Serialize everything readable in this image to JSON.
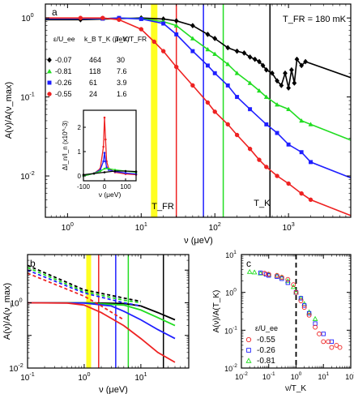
{
  "colors": {
    "black": "#000000",
    "green": "#22dd22",
    "blue": "#1f1fff",
    "red": "#ee2222",
    "yellow": "#ffff22",
    "light_green": "#22dd22"
  },
  "chart_data": [
    {
      "id": "a",
      "type": "scatter",
      "panel_label": "a",
      "annotation": "T_FR = 180 mK",
      "ylabel": "A(ν)/A(ν_max)",
      "xlabel": "ν (μeV)",
      "xscale": "log",
      "yscale": "log",
      "xlim": [
        0.5,
        7000
      ],
      "ylim": [
        0.003,
        1.5
      ],
      "x_ticks": [
        "10^0",
        "10^1",
        "10^2",
        "10^3"
      ],
      "y_ticks": [
        "10^-2",
        "10^-1",
        "10^0"
      ],
      "vertical_lines": [
        {
          "x": 15,
          "color": "yellow",
          "label": "T_FR"
        },
        {
          "x": 30,
          "color": "red"
        },
        {
          "x": 70,
          "color": "blue"
        },
        {
          "x": 130,
          "color": "green"
        },
        {
          "x": 560,
          "color": "black",
          "label": "T_K"
        }
      ],
      "legend_headers": [
        "ε/U_ee",
        "k_B T_K (μeV)",
        "T_K/T_FR"
      ],
      "series": [
        {
          "name": "-0.07",
          "eps": "-0.07",
          "kbtk": "464",
          "ratio": "30",
          "color": "black",
          "marker": "diamond",
          "x": [
            1.5,
            5,
            10,
            20,
            30,
            50,
            80,
            100,
            150,
            200,
            250,
            300,
            350,
            400,
            450,
            500,
            600,
            700,
            800,
            900,
            1000,
            1100,
            1200,
            1300,
            1500,
            1700
          ],
          "y": [
            0.95,
            0.98,
            1.0,
            0.97,
            0.92,
            0.8,
            0.62,
            0.55,
            0.42,
            0.38,
            0.36,
            0.32,
            0.3,
            0.28,
            0.25,
            0.22,
            0.2,
            0.16,
            0.14,
            0.2,
            0.13,
            0.22,
            0.15,
            0.3,
            0.25,
            0.28
          ]
        },
        {
          "name": "-0.81",
          "eps": "-0.81",
          "kbtk": "118",
          "ratio": "7.6",
          "color": "green",
          "marker": "triangle",
          "x": [
            3,
            5,
            10,
            20,
            30,
            50,
            80,
            100,
            150,
            200,
            300,
            400,
            500,
            700,
            1000,
            1500,
            2000
          ],
          "y": [
            0.98,
            1.0,
            0.98,
            0.9,
            0.8,
            0.55,
            0.4,
            0.35,
            0.26,
            0.2,
            0.15,
            0.12,
            0.1,
            0.08,
            0.07,
            0.05,
            0.045
          ]
        },
        {
          "name": "-0.26",
          "eps": "-0.26",
          "kbtk": "61",
          "ratio": "3.9",
          "color": "blue",
          "marker": "square",
          "x": [
            3,
            5,
            10,
            20,
            30,
            50,
            80,
            100,
            150,
            200,
            300,
            500,
            700,
            1000,
            1500,
            2000
          ],
          "y": [
            0.98,
            1.0,
            0.97,
            0.85,
            0.62,
            0.38,
            0.25,
            0.2,
            0.14,
            0.1,
            0.07,
            0.045,
            0.035,
            0.025,
            0.02,
            0.015
          ]
        },
        {
          "name": "-0.55",
          "eps": "-0.55",
          "kbtk": "24",
          "ratio": "1.6",
          "color": "red",
          "marker": "circle",
          "x": [
            1.5,
            3,
            5,
            10,
            15,
            20,
            30,
            50,
            80,
            100,
            150,
            200,
            300,
            400,
            500,
            700,
            1000,
            1500,
            2000
          ],
          "y": [
            1.0,
            1.0,
            0.95,
            0.72,
            0.5,
            0.38,
            0.24,
            0.14,
            0.085,
            0.065,
            0.045,
            0.033,
            0.022,
            0.016,
            0.013,
            0.01,
            0.008,
            0.006,
            0.005
          ]
        }
      ],
      "inset": {
        "ylabel": "ΔI_n/I_n (x10^-3)",
        "xlabel": "ν (μeV)",
        "xlim": [
          -100,
          150
        ],
        "ylim": [
          -0.2,
          2.7
        ],
        "x_ticks": [
          "-100",
          "0",
          "100"
        ],
        "y_ticks": [
          "0",
          "1",
          "2"
        ],
        "series": [
          {
            "color": "red",
            "x": [
              -100,
              -50,
              -20,
              -5,
              0,
              5,
              10,
              20,
              50,
              100,
              150
            ],
            "y": [
              0.0,
              0.1,
              0.3,
              1.2,
              2.4,
              1.5,
              0.6,
              0.3,
              0.15,
              0.08,
              0.05
            ]
          },
          {
            "color": "blue",
            "x": [
              -100,
              -50,
              -20,
              -5,
              0,
              5,
              10,
              20,
              50,
              100,
              150
            ],
            "y": [
              0.0,
              0.1,
              0.25,
              0.6,
              0.95,
              0.6,
              0.35,
              0.25,
              0.18,
              0.12,
              0.08
            ]
          },
          {
            "color": "green",
            "x": [
              -100,
              -50,
              -20,
              0,
              20,
              50,
              100,
              150
            ],
            "y": [
              0.0,
              0.1,
              0.2,
              0.3,
              0.3,
              0.25,
              0.2,
              0.15
            ]
          },
          {
            "color": "black",
            "x": [
              -100,
              -50,
              0,
              50,
              100,
              150
            ],
            "y": [
              0.05,
              0.1,
              0.15,
              0.2,
              0.2,
              0.18
            ]
          }
        ]
      }
    },
    {
      "id": "b",
      "type": "line",
      "panel_label": "b",
      "ylabel": "A(ν)/A(ν_max)",
      "xlabel": "ν (μeV)",
      "xscale": "log",
      "yscale": "log",
      "xlim": [
        0.1,
        70
      ],
      "ylim": [
        0.01,
        30
      ],
      "x_ticks": [
        "10^-1",
        "10^0",
        "10^1"
      ],
      "y_ticks": [
        "10^-2",
        "10^0"
      ],
      "vertical_lines": [
        {
          "x": 1.2,
          "color": "yellow"
        },
        {
          "x": 1.8,
          "color": "red"
        },
        {
          "x": 3.6,
          "color": "blue"
        },
        {
          "x": 6.0,
          "color": "green"
        },
        {
          "x": 25,
          "color": "black"
        }
      ],
      "series": [
        {
          "color": "black",
          "dashed_x": [
            0.1,
            1,
            5,
            10
          ],
          "dashed_y": [
            14,
            2.5,
            1.4,
            1.1
          ],
          "solid_x": [
            0.1,
            1,
            5,
            10,
            20,
            40
          ],
          "solid_y": [
            1,
            1,
            0.95,
            0.8,
            0.5,
            0.3
          ]
        },
        {
          "color": "green",
          "dashed_x": [
            0.1,
            1,
            5,
            10
          ],
          "dashed_y": [
            12,
            2.2,
            1.2,
            1.0
          ],
          "solid_x": [
            0.1,
            1,
            5,
            10,
            20,
            40
          ],
          "solid_y": [
            1,
            1,
            0.85,
            0.6,
            0.35,
            0.2
          ]
        },
        {
          "color": "blue",
          "dashed_x": [
            0.1,
            1,
            5,
            10
          ],
          "dashed_y": [
            10,
            2.0,
            1.0,
            0.8
          ],
          "solid_x": [
            0.1,
            1,
            3,
            5,
            10,
            20,
            40
          ],
          "solid_y": [
            1,
            0.98,
            0.8,
            0.55,
            0.3,
            0.15,
            0.08
          ]
        },
        {
          "color": "red",
          "dashed_x": [
            0.1,
            1,
            2,
            5
          ],
          "dashed_y": [
            8,
            1.6,
            0.8,
            0.3
          ],
          "solid_x": [
            0.1,
            0.5,
            1,
            2,
            5,
            10,
            20,
            40
          ],
          "solid_y": [
            1,
            0.98,
            0.85,
            0.5,
            0.2,
            0.08,
            0.03,
            0.015
          ]
        }
      ]
    },
    {
      "id": "c",
      "type": "scatter",
      "panel_label": "c",
      "ylabel": "A(ν)/A(T_K)",
      "xlabel": "ν/T_K",
      "xscale": "log",
      "yscale": "log",
      "xlim": [
        0.01,
        100
      ],
      "ylim": [
        0.01,
        10
      ],
      "x_ticks": [
        "10^-2",
        "10^-1",
        "10^0",
        "10^1",
        "10^2"
      ],
      "y_ticks": [
        "10^-2",
        "10^-1",
        "10^0",
        "10^1"
      ],
      "vertical_lines": [
        {
          "x": 1,
          "color": "black",
          "dashed": true
        }
      ],
      "legend_header": "ε/U_ee",
      "series": [
        {
          "name": "-0.55",
          "color": "red",
          "marker": "circle",
          "x": [
            0.07,
            0.1,
            0.2,
            0.3,
            0.5,
            0.8,
            1,
            1.5,
            2,
            3,
            5,
            7,
            10,
            15,
            20,
            30,
            40
          ],
          "y": [
            3.2,
            3.0,
            2.8,
            2.5,
            2.2,
            1.6,
            1.0,
            0.6,
            0.4,
            0.25,
            0.12,
            0.08,
            0.05,
            0.05,
            0.035,
            0.04,
            0.035
          ]
        },
        {
          "name": "-0.26",
          "color": "blue",
          "marker": "square",
          "x": [
            0.05,
            0.08,
            0.1,
            0.2,
            0.3,
            0.5,
            1,
            1.5,
            2,
            3,
            5,
            10,
            20
          ],
          "y": [
            3.3,
            3.0,
            2.8,
            2.6,
            2.3,
            1.8,
            1.0,
            0.7,
            0.45,
            0.28,
            0.15,
            0.08,
            0.05
          ]
        },
        {
          "name": "-0.81",
          "color": "light_green",
          "marker": "triangle",
          "x": [
            0.02,
            0.03,
            0.05,
            0.1,
            0.2,
            0.3,
            0.5,
            0.8,
            1,
            1.5,
            2,
            3,
            5
          ],
          "y": [
            3.5,
            3.4,
            3.2,
            3.0,
            2.8,
            2.5,
            2.0,
            1.4,
            1.0,
            0.7,
            0.5,
            0.3,
            0.2
          ]
        }
      ]
    }
  ]
}
